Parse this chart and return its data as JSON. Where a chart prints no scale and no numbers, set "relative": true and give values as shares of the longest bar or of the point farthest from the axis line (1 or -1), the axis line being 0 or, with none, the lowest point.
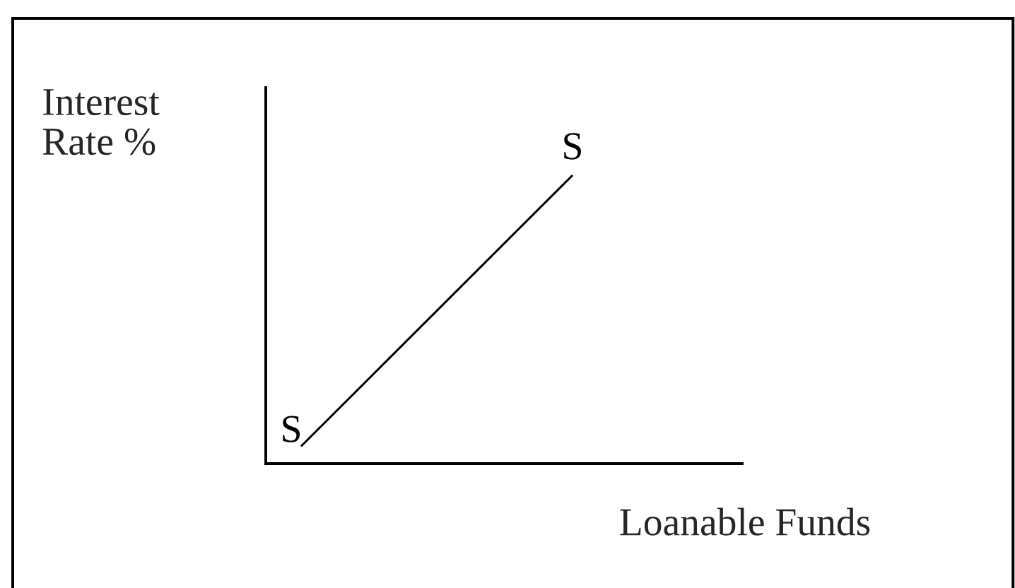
{
  "chart_data": {
    "type": "line",
    "relative": true,
    "categories": [
      null,
      null
    ],
    "series": [
      {
        "name": "S",
        "color": "#000000",
        "values": [
          0.06,
          1
        ]
      }
    ],
    "xlabel": "Loanable Funds",
    "ylabel": "Interest\nRate %",
    "line_style": "solid"
  }
}
